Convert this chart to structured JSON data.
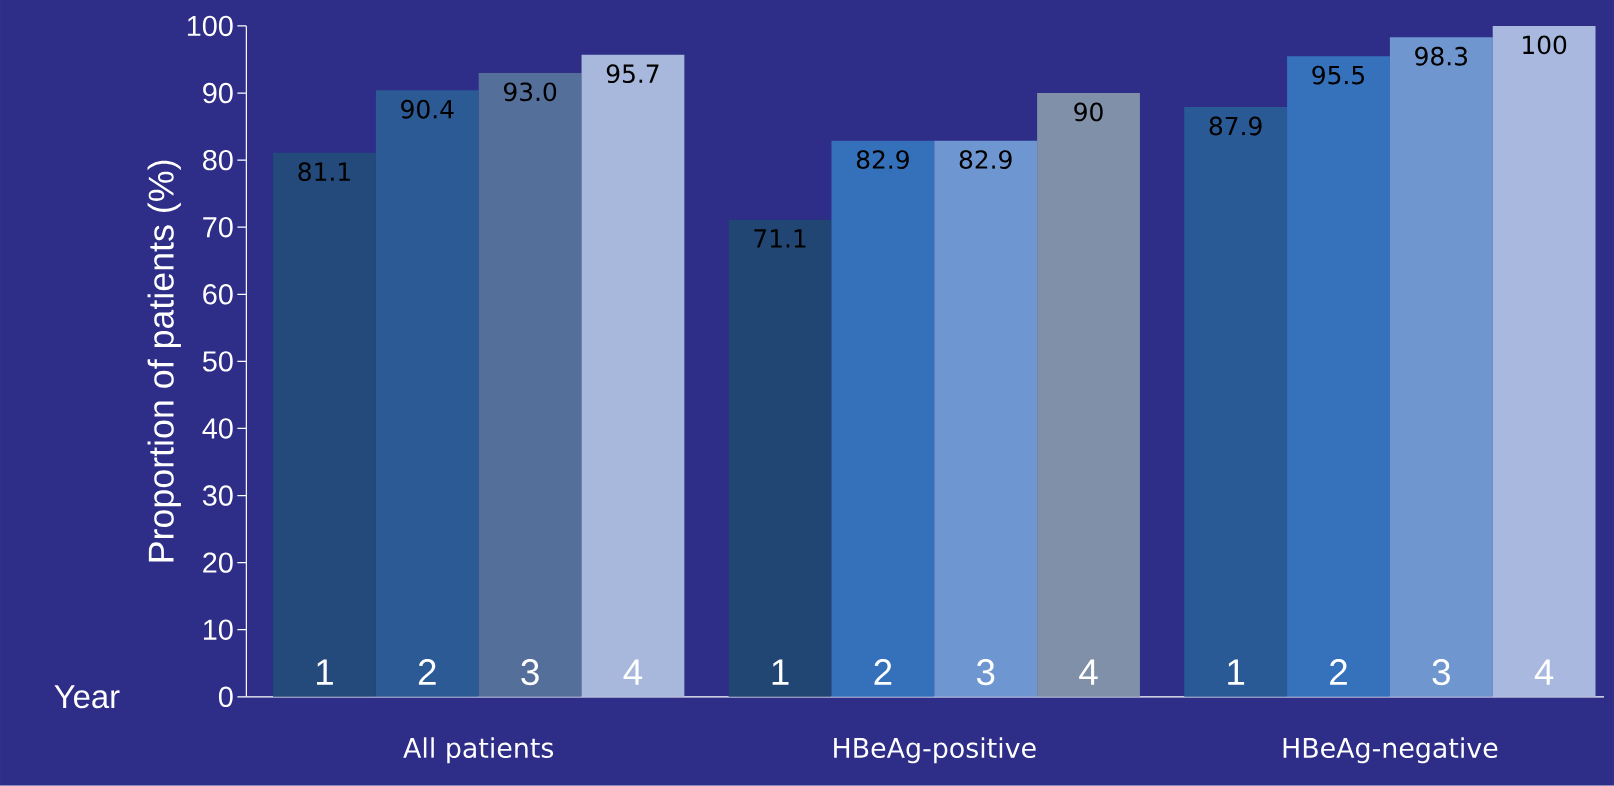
{
  "chart_data": {
    "type": "bar",
    "ylabel": "Proportion of patients (%)",
    "legend_title": "Year",
    "categories": [
      "All patients",
      "HBeAg-positive",
      "HBeAg-negative"
    ],
    "series": [
      {
        "name": "1",
        "values": [
          81.1,
          71.1,
          87.9
        ],
        "value_labels": [
          "81.1",
          "71.1",
          "87.9"
        ],
        "colors": [
          "#234a7a",
          "#224673",
          "#2a5a96"
        ]
      },
      {
        "name": "2",
        "values": [
          90.4,
          82.9,
          95.5
        ],
        "value_labels": [
          "90.4",
          "82.9",
          "95.5"
        ],
        "colors": [
          "#2b5a94",
          "#3571bb",
          "#3672bc"
        ]
      },
      {
        "name": "3",
        "values": [
          93.0,
          82.9,
          98.3
        ],
        "value_labels": [
          "93.0",
          "82.9",
          "98.3"
        ],
        "colors": [
          "#54709a",
          "#6e96d0",
          "#6f96cf"
        ]
      },
      {
        "name": "4",
        "values": [
          95.7,
          90,
          100
        ],
        "value_labels": [
          "95.7",
          "90",
          "100"
        ],
        "colors": [
          "#a8b8dc",
          "#8090a8",
          "#a8b8de"
        ]
      }
    ],
    "ylim": [
      0,
      100
    ],
    "yticks": [
      0,
      10,
      20,
      30,
      40,
      50,
      60,
      70,
      80,
      90,
      100
    ],
    "grid": false
  }
}
